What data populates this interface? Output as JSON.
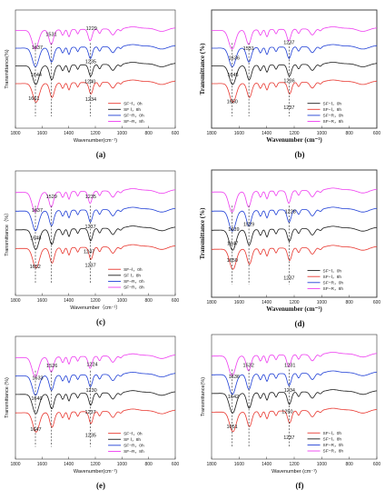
{
  "colors": {
    "red": "#e8372f",
    "black": "#1a1a1a",
    "blue": "#1f3fd6",
    "magenta": "#ee3df0"
  },
  "chart_data": [
    {
      "type": "line",
      "panel": "(a)",
      "bold_axes": false,
      "xlabel": "Wavenumber(cm⁻¹)",
      "ylabel": "Transmittance(%)",
      "xlim": [
        1800,
        600
      ],
      "xticks": [
        1800,
        1600,
        1400,
        1200,
        1000,
        800,
        600
      ],
      "series": [
        {
          "name": "SF−Ⅰ，0h",
          "color": "red"
        },
        {
          "name": "SF Ⅰ，8h",
          "color": "black"
        },
        {
          "name": "SF−R，0h",
          "color": "blue"
        },
        {
          "name": "SF−R，8h",
          "color": "magenta"
        }
      ],
      "annotations": [
        {
          "text": "1637",
          "x": 1637,
          "row": 0.33
        },
        {
          "text": "1531",
          "x": 1531,
          "row": 0.22
        },
        {
          "text": "1229",
          "x": 1229,
          "row": 0.17
        },
        {
          "text": "1644",
          "x": 1644,
          "row": 0.56
        },
        {
          "text": "1235",
          "x": 1235,
          "row": 0.45
        },
        {
          "text": "1240",
          "x": 1240,
          "row": 0.62
        },
        {
          "text": "1661",
          "x": 1661,
          "row": 0.76
        },
        {
          "text": "1234",
          "x": 1234,
          "row": 0.77
        }
      ]
    },
    {
      "type": "line",
      "panel": "(b)",
      "bold_axes": true,
      "xlabel": "Wavenumber (cm⁻¹)",
      "ylabel": "Transmittance (%)",
      "xlim": [
        1800,
        600
      ],
      "xticks": [
        1800,
        1600,
        1400,
        1200,
        1000,
        800,
        600
      ],
      "series": [
        {
          "name": "SF−Ⅰ，0h",
          "color": "black"
        },
        {
          "name": "SF−Ⅰ，8h",
          "color": "red"
        },
        {
          "name": "SF−R，0h",
          "color": "blue"
        },
        {
          "name": "SF−R，8h",
          "color": "magenta"
        }
      ],
      "annotations": [
        {
          "text": "1531",
          "x": 1531,
          "row": 0.34
        },
        {
          "text": "1636",
          "x": 1636,
          "row": 0.42
        },
        {
          "text": "1237",
          "x": 1237,
          "row": 0.29
        },
        {
          "text": "1645",
          "x": 1645,
          "row": 0.56
        },
        {
          "text": "1236",
          "x": 1236,
          "row": 0.61
        },
        {
          "text": "1650",
          "x": 1650,
          "row": 0.79
        },
        {
          "text": "1237",
          "x": 1237,
          "row": 0.84
        }
      ]
    },
    {
      "type": "line",
      "panel": "(c)",
      "bold_axes": false,
      "xlabel": "Wavenumber（cm⁻¹）",
      "ylabel": "Transmittance（%）",
      "xlim": [
        1800,
        600
      ],
      "xticks": [
        1800,
        1600,
        1400,
        1200,
        1000,
        800,
        600
      ],
      "series": [
        {
          "name": "SF−Ⅰ，0h",
          "color": "red"
        },
        {
          "name": "SF Ⅰ，8h",
          "color": "black"
        },
        {
          "name": "SF−R，0h",
          "color": "blue"
        },
        {
          "name": "SF−R，8h",
          "color": "magenta"
        }
      ],
      "annotations": [
        {
          "text": "1529",
          "x": 1529,
          "row": 0.22
        },
        {
          "text": "1235",
          "x": 1235,
          "row": 0.22
        },
        {
          "text": "1637",
          "x": 1637,
          "row": 0.33
        },
        {
          "text": "1237",
          "x": 1237,
          "row": 0.46
        },
        {
          "text": "1648",
          "x": 1648,
          "row": 0.55
        },
        {
          "text": "1247",
          "x": 1247,
          "row": 0.66
        },
        {
          "text": "1652",
          "x": 1652,
          "row": 0.78
        },
        {
          "text": "1237",
          "x": 1237,
          "row": 0.77
        }
      ]
    },
    {
      "type": "line",
      "panel": "(d)",
      "bold_axes": true,
      "xlabel": "Wavenumber (cm⁻¹)",
      "ylabel": "Transmittance (%)",
      "xlim": [
        1800,
        600
      ],
      "xticks": [
        1800,
        1600,
        1400,
        1200,
        1000,
        800,
        600
      ],
      "series": [
        {
          "name": "SF−Ⅰ，0h",
          "color": "black"
        },
        {
          "name": "SF−Ⅰ，8h",
          "color": "red"
        },
        {
          "name": "SF−R，0h",
          "color": "blue"
        },
        {
          "name": "SF−R，8h",
          "color": "magenta"
        }
      ],
      "annotations": [
        {
          "text": "1228",
          "x": 1228,
          "row": 0.34
        },
        {
          "text": "1529",
          "x": 1529,
          "row": 0.44
        },
        {
          "text": "1639",
          "x": 1639,
          "row": 0.48
        },
        {
          "text": "1647",
          "x": 1647,
          "row": 0.59
        },
        {
          "text": "1650",
          "x": 1650,
          "row": 0.72
        },
        {
          "text": "1237",
          "x": 1237,
          "row": 0.86
        }
      ]
    },
    {
      "type": "line",
      "panel": "(e)",
      "bold_axes": false,
      "xlabel": "Wavenumber(cm⁻¹)",
      "ylabel": "Transmittance (%)",
      "xlim": [
        1800,
        600
      ],
      "xticks": [
        1800,
        1600,
        1400,
        1200,
        1000,
        800,
        600
      ],
      "series": [
        {
          "name": "SF−Ⅰ，0h",
          "color": "red"
        },
        {
          "name": "SF Ⅰ，8h",
          "color": "black"
        },
        {
          "name": "SF−R，0h",
          "color": "blue"
        },
        {
          "name": "SF−R，8h",
          "color": "magenta"
        }
      ],
      "annotations": [
        {
          "text": "1526",
          "x": 1526,
          "row": 0.25
        },
        {
          "text": "1224",
          "x": 1224,
          "row": 0.24
        },
        {
          "text": "1633",
          "x": 1633,
          "row": 0.35
        },
        {
          "text": "1230",
          "x": 1230,
          "row": 0.45
        },
        {
          "text": "1640",
          "x": 1640,
          "row": 0.52
        },
        {
          "text": "1237",
          "x": 1237,
          "row": 0.63
        },
        {
          "text": "1647",
          "x": 1647,
          "row": 0.77
        },
        {
          "text": "1235",
          "x": 1235,
          "row": 0.82
        }
      ]
    },
    {
      "type": "line",
      "panel": "(f)",
      "bold_axes": false,
      "xlabel": "Wavenumber (cm⁻¹)",
      "ylabel": "Transmittance(%)",
      "xlim": [
        1800,
        600
      ],
      "xticks": [
        1800,
        1600,
        1400,
        1200,
        1000,
        800,
        600
      ],
      "series": [
        {
          "name": "SF−Ⅰ，0h",
          "color": "red"
        },
        {
          "name": "SF−Ⅰ，8h",
          "color": "black"
        },
        {
          "name": "SF−R，0h",
          "color": "blue"
        },
        {
          "name": "SF−R，8h",
          "color": "magenta"
        }
      ],
      "annotations": [
        {
          "text": "1532",
          "x": 1532,
          "row": 0.26
        },
        {
          "text": "1231",
          "x": 1231,
          "row": 0.26
        },
        {
          "text": "1636",
          "x": 1636,
          "row": 0.35
        },
        {
          "text": "1234",
          "x": 1234,
          "row": 0.46
        },
        {
          "text": "1642",
          "x": 1642,
          "row": 0.51
        },
        {
          "text": "1250",
          "x": 1250,
          "row": 0.63
        },
        {
          "text": "1651",
          "x": 1651,
          "row": 0.75
        },
        {
          "text": "1237",
          "x": 1237,
          "row": 0.84
        }
      ]
    }
  ]
}
